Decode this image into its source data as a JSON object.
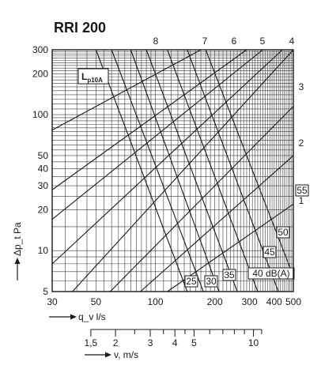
{
  "chart_data": {
    "type": "line",
    "title": "RRI 200",
    "xlabel": "q_v l/s",
    "ylabel": "Δp_t Pa",
    "x_scale": "log",
    "y_scale": "log",
    "xlim": [
      30,
      500
    ],
    "ylim": [
      5,
      300
    ],
    "x_ticks": [
      "30",
      "50",
      "100",
      "200",
      "300",
      "400",
      "500"
    ],
    "y_ticks": [
      "5",
      "10",
      "20",
      "30",
      "40",
      "50",
      "100",
      "200",
      "300"
    ],
    "grid": true,
    "legend_box": "Lp10A",
    "velocity_axis": {
      "label": "v, m/s",
      "ticks": [
        "1,5",
        "2",
        "3",
        "4",
        "5",
        "10"
      ],
      "q_per_v": 31.4
    },
    "settings_series": {
      "description": "damper positions (pressure vs airflow)",
      "labels": [
        "1",
        "2",
        "3",
        "4",
        "5",
        "6",
        "7",
        "8"
      ],
      "lines": [
        {
          "name": "1",
          "points": [
            [
              115,
              5
            ],
            [
              500,
              22
            ]
          ]
        },
        {
          "name": "2",
          "points": [
            [
              84,
              5
            ],
            [
              500,
              50
            ]
          ]
        },
        {
          "name": "3",
          "points": [
            [
              59,
              5
            ],
            [
              500,
              115
            ]
          ]
        },
        {
          "name": "4",
          "points": [
            [
              38,
              5
            ],
            [
              500,
              300
            ]
          ]
        },
        {
          "name": "5",
          "points": [
            [
              30,
              8
            ],
            [
              440,
              300
            ]
          ]
        },
        {
          "name": "6",
          "points": [
            [
              30,
              17
            ],
            [
              350,
              300
            ]
          ]
        },
        {
          "name": "7",
          "points": [
            [
              30,
              28
            ],
            [
              290,
              300
            ]
          ]
        },
        {
          "name": "8",
          "points": [
            [
              30,
              77
            ],
            [
              170,
              300
            ]
          ]
        }
      ]
    },
    "sound_series": {
      "description": "sound power level Lp10A lines",
      "labels": [
        "25",
        "30",
        "35",
        "40 dB(A)",
        "45",
        "50",
        "55"
      ],
      "lines": [
        {
          "name": "25",
          "points": [
            [
              50,
              300
            ],
            [
              145,
              5
            ]
          ]
        },
        {
          "name": "30",
          "points": [
            [
              60,
              300
            ],
            [
              175,
              5
            ]
          ]
        },
        {
          "name": "35",
          "points": [
            [
              75,
              300
            ],
            [
              210,
              5
            ]
          ]
        },
        {
          "name": "40 dB(A)",
          "points": [
            [
              90,
              300
            ],
            [
              260,
              5
            ]
          ]
        },
        {
          "name": "45",
          "points": [
            [
              115,
              300
            ],
            [
              330,
              5
            ]
          ]
        },
        {
          "name": "50",
          "points": [
            [
              145,
              300
            ],
            [
              420,
              5
            ]
          ]
        },
        {
          "name": "55",
          "points": [
            [
              180,
              300
            ],
            [
              500,
              6.5
            ]
          ]
        }
      ]
    }
  }
}
